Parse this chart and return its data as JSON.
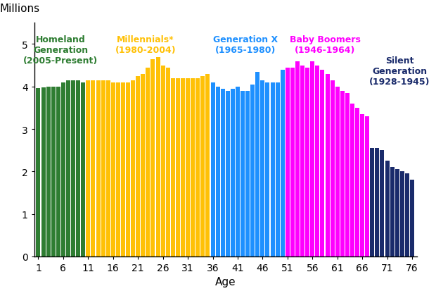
{
  "ages": [
    1,
    2,
    3,
    4,
    5,
    6,
    7,
    8,
    9,
    10,
    11,
    12,
    13,
    14,
    15,
    16,
    17,
    18,
    19,
    20,
    21,
    22,
    23,
    24,
    25,
    26,
    27,
    28,
    29,
    30,
    31,
    32,
    33,
    34,
    35,
    36,
    37,
    38,
    39,
    40,
    41,
    42,
    43,
    44,
    45,
    46,
    47,
    48,
    49,
    50,
    51,
    52,
    53,
    54,
    55,
    56,
    57,
    58,
    59,
    60,
    61,
    62,
    63,
    64,
    65,
    66,
    67,
    68,
    69,
    70,
    71,
    72,
    73,
    74,
    75,
    76
  ],
  "values": [
    3.97,
    3.98,
    4.0,
    4.0,
    4.0,
    4.1,
    4.15,
    4.15,
    4.15,
    4.1,
    4.15,
    4.15,
    4.15,
    4.15,
    4.15,
    4.1,
    4.1,
    4.1,
    4.1,
    4.15,
    4.25,
    4.3,
    4.45,
    4.65,
    4.7,
    4.5,
    4.45,
    4.2,
    4.2,
    4.2,
    4.2,
    4.2,
    4.2,
    4.25,
    4.3,
    4.1,
    4.0,
    3.95,
    3.9,
    3.95,
    4.0,
    3.9,
    3.9,
    4.05,
    4.35,
    4.15,
    4.1,
    4.1,
    4.1,
    4.4,
    4.45,
    4.45,
    4.6,
    4.5,
    4.45,
    4.6,
    4.5,
    4.4,
    4.3,
    4.15,
    4.0,
    3.9,
    3.85,
    3.6,
    3.5,
    3.35,
    3.3,
    2.55,
    2.55,
    2.5,
    2.25,
    2.1,
    2.05,
    2.0,
    1.95,
    1.8
  ],
  "colors": [
    "#2e7d32",
    "#2e7d32",
    "#2e7d32",
    "#2e7d32",
    "#2e7d32",
    "#2e7d32",
    "#2e7d32",
    "#2e7d32",
    "#2e7d32",
    "#2e7d32",
    "#ffc107",
    "#ffc107",
    "#ffc107",
    "#ffc107",
    "#ffc107",
    "#ffc107",
    "#ffc107",
    "#ffc107",
    "#ffc107",
    "#ffc107",
    "#ffc107",
    "#ffc107",
    "#ffc107",
    "#ffc107",
    "#ffc107",
    "#ffc107",
    "#ffc107",
    "#ffc107",
    "#ffc107",
    "#ffc107",
    "#ffc107",
    "#ffc107",
    "#ffc107",
    "#ffc107",
    "#ffc107",
    "#1e90ff",
    "#1e90ff",
    "#1e90ff",
    "#1e90ff",
    "#1e90ff",
    "#1e90ff",
    "#1e90ff",
    "#1e90ff",
    "#1e90ff",
    "#1e90ff",
    "#1e90ff",
    "#1e90ff",
    "#1e90ff",
    "#1e90ff",
    "#1e90ff",
    "#ff00ff",
    "#ff00ff",
    "#ff00ff",
    "#ff00ff",
    "#ff00ff",
    "#ff00ff",
    "#ff00ff",
    "#ff00ff",
    "#ff00ff",
    "#ff00ff",
    "#ff00ff",
    "#ff00ff",
    "#ff00ff",
    "#ff00ff",
    "#ff00ff",
    "#ff00ff",
    "#ff00ff",
    "#1a2b6b",
    "#1a2b6b",
    "#1a2b6b",
    "#1a2b6b",
    "#1a2b6b",
    "#1a2b6b",
    "#1a2b6b",
    "#1a2b6b",
    "#1a2b6b"
  ],
  "xlabel": "Age",
  "ylim": [
    0,
    5.5
  ],
  "yticks": [
    0,
    1,
    2,
    3,
    4,
    5
  ],
  "xticks": [
    1,
    6,
    11,
    16,
    21,
    26,
    31,
    36,
    41,
    46,
    51,
    56,
    61,
    66,
    71,
    76
  ],
  "bg_color": "#ffffff",
  "bar_width": 0.85,
  "label_homeland": "Homeland\nGeneration\n(2005-Present)",
  "label_millennial": "Millennials*\n(1980-2004)",
  "label_genx": "Generation X\n(1965-1980)",
  "label_boomer": "Baby Boomers\n(1946-1964)",
  "label_silent": "Silent\nGeneration\n(1928-1945)",
  "color_homeland": "#2e7d32",
  "color_millennial": "#ffc107",
  "color_genx": "#1e90ff",
  "color_boomer": "#ff00ff",
  "color_silent": "#1a2b6b"
}
